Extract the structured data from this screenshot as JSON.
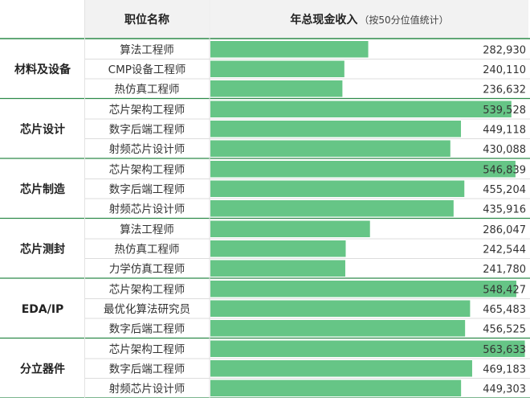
{
  "chart_data": {
    "type": "table",
    "columns": {
      "position": "职位名称",
      "value_title": "年总现金收入",
      "value_note": "（按50分位值统计）"
    },
    "max_value": 570000,
    "groups": [
      {
        "name": "材料及设备",
        "rows": [
          {
            "label": "算法工程师",
            "value": 282930,
            "display": "282,930"
          },
          {
            "label": "CMP设备工程师",
            "value": 240110,
            "display": "240,110"
          },
          {
            "label": "热仿真工程师",
            "value": 236632,
            "display": "236,632"
          }
        ]
      },
      {
        "name": "芯片设计",
        "rows": [
          {
            "label": "芯片架构工程师",
            "value": 539528,
            "display": "539,528"
          },
          {
            "label": "数字后端工程师",
            "value": 449118,
            "display": "449,118"
          },
          {
            "label": "射频芯片设计师",
            "value": 430088,
            "display": "430,088"
          }
        ]
      },
      {
        "name": "芯片制造",
        "rows": [
          {
            "label": "芯片架构工程师",
            "value": 546839,
            "display": "546,839"
          },
          {
            "label": "数字后端工程师",
            "value": 455204,
            "display": "455,204"
          },
          {
            "label": "射频芯片设计师",
            "value": 435916,
            "display": "435,916"
          }
        ]
      },
      {
        "name": "芯片测封",
        "rows": [
          {
            "label": "算法工程师",
            "value": 286047,
            "display": "286,047"
          },
          {
            "label": "热仿真工程师",
            "value": 242544,
            "display": "242,544"
          },
          {
            "label": "力学仿真工程师",
            "value": 241780,
            "display": "241,780"
          }
        ]
      },
      {
        "name": "EDA/IP",
        "rows": [
          {
            "label": "芯片架构工程师",
            "value": 548427,
            "display": "548,427"
          },
          {
            "label": "最优化算法研究员",
            "value": 465483,
            "display": "465,483"
          },
          {
            "label": "数字后端工程师",
            "value": 456525,
            "display": "456,525"
          }
        ]
      },
      {
        "name": "分立器件",
        "rows": [
          {
            "label": "芯片架构工程师",
            "value": 563633,
            "display": "563,633"
          },
          {
            "label": "数字后端工程师",
            "value": 469183,
            "display": "469,183"
          },
          {
            "label": "射频芯片设计师",
            "value": 449303,
            "display": "449,303"
          }
        ]
      }
    ],
    "colors": {
      "bar": "#66c586",
      "group_line": "#2e8b4a",
      "row_line": "#dddddd",
      "header_bg": "#f2f2f2"
    }
  }
}
